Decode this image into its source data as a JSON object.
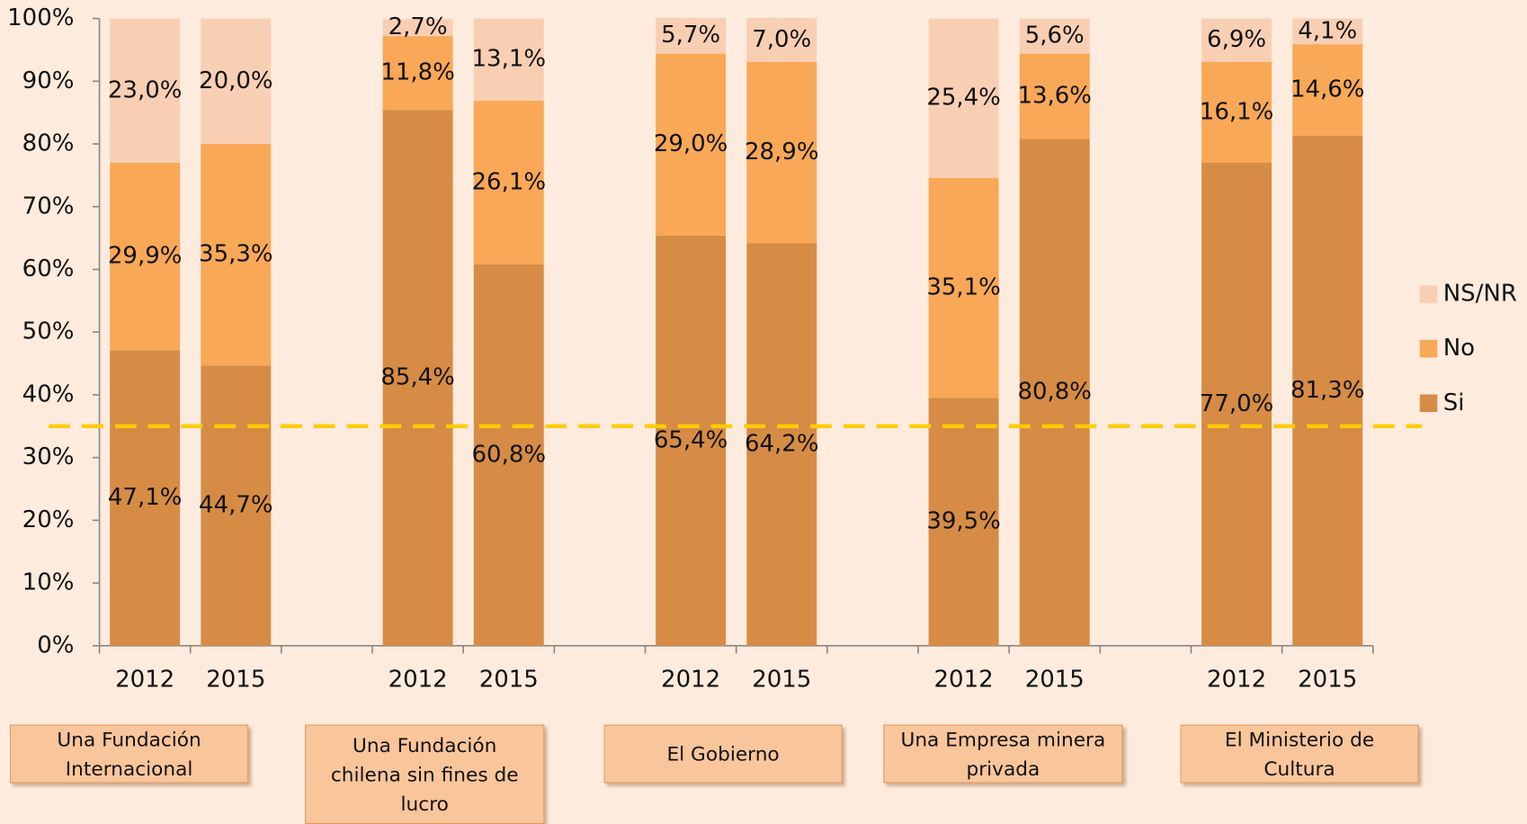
{
  "chart_data": {
    "type": "stacked_bar",
    "categories": [
      "2012",
      "2015",
      null,
      "2012",
      "2015",
      null,
      "2012",
      "2015",
      null,
      "2012",
      "2015",
      null,
      "2012",
      "2015"
    ],
    "groups": [
      "Una Fundación Internacional",
      "Una Fundación chilena sin fines de lucro",
      "El Gobierno",
      "Una Empresa minera privada",
      "El Ministerio de Cultura"
    ],
    "series": [
      {
        "name": "Si",
        "color": "#d68c45",
        "values": [
          47.1,
          44.7,
          null,
          85.4,
          60.8,
          null,
          65.4,
          64.2,
          null,
          39.5,
          80.8,
          null,
          77.0,
          81.3
        ],
        "value_labels": [
          "47,1%",
          "44,7%",
          null,
          "85,4%",
          "60,8%",
          null,
          "65,4%",
          "64,2%",
          null,
          "39,5%",
          "80,8%",
          null,
          "77,0%",
          "81,3%"
        ]
      },
      {
        "name": "No",
        "color": "#f8a857",
        "values": [
          29.9,
          35.3,
          null,
          11.8,
          26.1,
          null,
          29.0,
          28.9,
          null,
          35.1,
          13.6,
          null,
          16.1,
          14.6
        ],
        "value_labels": [
          "29,9%",
          "35,3%",
          null,
          "11,8%",
          "26,1%",
          null,
          "29,0%",
          "28,9%",
          null,
          "35,1%",
          "13,6%",
          null,
          "16,1%",
          "14,6%"
        ]
      },
      {
        "name": "NS/NR",
        "color": "#f9cfb3",
        "values": [
          23.0,
          20.0,
          null,
          2.7,
          13.1,
          null,
          5.7,
          7.0,
          null,
          25.4,
          5.6,
          null,
          6.9,
          4.1
        ],
        "value_labels": [
          "23,0%",
          "20,0%",
          null,
          "2,7%",
          "13,1%",
          null,
          "5,7%",
          "7,0%",
          null,
          "25,4%",
          "5,6%",
          null,
          "6,9%",
          "4,1%"
        ]
      }
    ],
    "ylim": [
      0,
      100
    ],
    "yticks": [
      {
        "value": 0,
        "label": "0%"
      },
      {
        "value": 10,
        "label": "10%"
      },
      {
        "value": 20,
        "label": "20%"
      },
      {
        "value": 30,
        "label": "30%"
      },
      {
        "value": 40,
        "label": "40%"
      },
      {
        "value": 50,
        "label": "50%"
      },
      {
        "value": 60,
        "label": "60%"
      },
      {
        "value": 70,
        "label": "70%"
      },
      {
        "value": 80,
        "label": "80%"
      },
      {
        "value": 90,
        "label": "90%"
      },
      {
        "value": 100,
        "label": "100%"
      }
    ],
    "reference_line": {
      "value": 35,
      "color": "#ffcc00"
    },
    "legend": "right"
  }
}
